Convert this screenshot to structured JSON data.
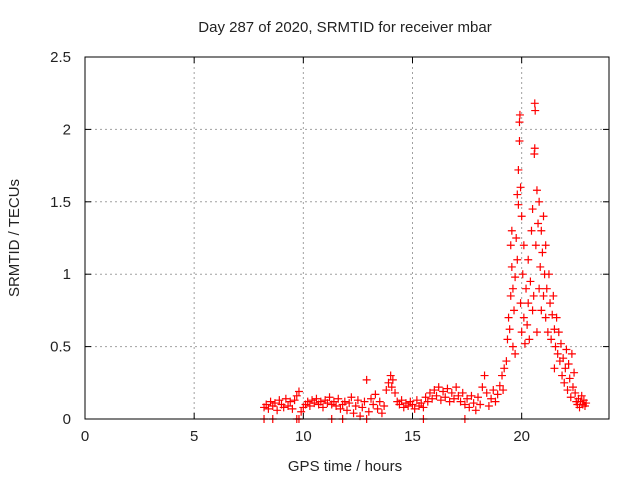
{
  "chart_data": {
    "type": "scatter",
    "title": "Day 287 of 2020, SRMTID for receiver mbar",
    "xlabel": "GPS time / hours",
    "ylabel": "SRMTID / TECUs",
    "xlim": [
      0,
      24
    ],
    "ylim": [
      0,
      2.5
    ],
    "xticks": [
      0,
      5,
      10,
      15,
      20
    ],
    "xtick_labels": [
      "0",
      "5",
      "10",
      "15",
      "20"
    ],
    "yticks": [
      0,
      0.5,
      1,
      1.5,
      2,
      2.5
    ],
    "ytick_labels": [
      "0",
      "0.5",
      "1",
      "1.5",
      "2",
      "2.5"
    ],
    "grid": true,
    "marker": "plus",
    "color": "#ff0000",
    "series": [
      {
        "name": "SRMTID",
        "points": [
          [
            8.2,
            0
          ],
          [
            8.6,
            0
          ],
          [
            9.7,
            0
          ],
          [
            9.8,
            0
          ],
          [
            11.3,
            0
          ],
          [
            11.8,
            0
          ],
          [
            12.9,
            0
          ],
          [
            15.5,
            0
          ],
          [
            17.4,
            0
          ],
          [
            8.2,
            0.08
          ],
          [
            8.3,
            0.1
          ],
          [
            8.4,
            0.07
          ],
          [
            8.5,
            0.12
          ],
          [
            8.6,
            0.09
          ],
          [
            8.7,
            0.11
          ],
          [
            8.8,
            0.06
          ],
          [
            8.9,
            0.13
          ],
          [
            9.0,
            0.1
          ],
          [
            9.1,
            0.08
          ],
          [
            9.2,
            0.14
          ],
          [
            9.3,
            0.09
          ],
          [
            9.4,
            0.12
          ],
          [
            9.5,
            0.07
          ],
          [
            9.6,
            0.13
          ],
          [
            9.7,
            0.16
          ],
          [
            9.8,
            0.19
          ],
          [
            9.9,
            0.05
          ],
          [
            10.0,
            0.08
          ],
          [
            10.1,
            0.1
          ],
          [
            10.2,
            0.12
          ],
          [
            10.3,
            0.09
          ],
          [
            10.4,
            0.13
          ],
          [
            10.5,
            0.11
          ],
          [
            10.6,
            0.14
          ],
          [
            10.7,
            0.1
          ],
          [
            10.8,
            0.12
          ],
          [
            10.9,
            0.08
          ],
          [
            11.0,
            0.13
          ],
          [
            11.1,
            0.11
          ],
          [
            11.2,
            0.15
          ],
          [
            11.3,
            0.1
          ],
          [
            11.4,
            0.12
          ],
          [
            11.5,
            0.09
          ],
          [
            11.6,
            0.14
          ],
          [
            11.7,
            0.07
          ],
          [
            11.8,
            0.1
          ],
          [
            11.9,
            0.12
          ],
          [
            12.0,
            0.06
          ],
          [
            12.1,
            0.11
          ],
          [
            12.2,
            0.15
          ],
          [
            12.3,
            0.04
          ],
          [
            12.4,
            0.09
          ],
          [
            12.5,
            0.13
          ],
          [
            12.6,
            0.02
          ],
          [
            12.7,
            0.08
          ],
          [
            12.8,
            0.12
          ],
          [
            12.9,
            0.27
          ],
          [
            13.0,
            0.05
          ],
          [
            13.1,
            0.14
          ],
          [
            13.2,
            0.1
          ],
          [
            13.3,
            0.17
          ],
          [
            13.4,
            0.07
          ],
          [
            13.5,
            0.12
          ],
          [
            13.6,
            0.04
          ],
          [
            13.7,
            0.09
          ],
          [
            13.8,
            0.2
          ],
          [
            13.9,
            0.25
          ],
          [
            14.0,
            0.3
          ],
          [
            14.05,
            0.22
          ],
          [
            14.1,
            0.27
          ],
          [
            14.2,
            0.18
          ],
          [
            14.3,
            0.12
          ],
          [
            14.4,
            0.1
          ],
          [
            14.5,
            0.13
          ],
          [
            14.6,
            0.08
          ],
          [
            14.7,
            0.11
          ],
          [
            14.8,
            0.09
          ],
          [
            14.9,
            0.12
          ],
          [
            15.0,
            0.1
          ],
          [
            15.1,
            0.07
          ],
          [
            15.2,
            0.13
          ],
          [
            15.3,
            0.09
          ],
          [
            15.4,
            0.11
          ],
          [
            15.5,
            0.08
          ],
          [
            15.6,
            0.15
          ],
          [
            15.7,
            0.12
          ],
          [
            15.8,
            0.18
          ],
          [
            15.9,
            0.14
          ],
          [
            16.0,
            0.2
          ],
          [
            16.1,
            0.16
          ],
          [
            16.2,
            0.22
          ],
          [
            16.3,
            0.13
          ],
          [
            16.4,
            0.19
          ],
          [
            16.5,
            0.15
          ],
          [
            16.6,
            0.21
          ],
          [
            16.7,
            0.12
          ],
          [
            16.8,
            0.18
          ],
          [
            16.9,
            0.14
          ],
          [
            17.0,
            0.22
          ],
          [
            17.1,
            0.16
          ],
          [
            17.2,
            0.12
          ],
          [
            17.3,
            0.18
          ],
          [
            17.4,
            0.1
          ],
          [
            17.5,
            0.14
          ],
          [
            17.6,
            0.08
          ],
          [
            17.7,
            0.16
          ],
          [
            17.8,
            0.11
          ],
          [
            17.9,
            0.06
          ],
          [
            18.0,
            0.15
          ],
          [
            18.1,
            0.1
          ],
          [
            18.2,
            0.22
          ],
          [
            18.3,
            0.3
          ],
          [
            18.4,
            0.18
          ],
          [
            18.5,
            0.09
          ],
          [
            18.6,
            0.14
          ],
          [
            18.7,
            0.2
          ],
          [
            18.8,
            0.12
          ],
          [
            18.9,
            0.17
          ],
          [
            19.0,
            0.23
          ],
          [
            19.1,
            0.3
          ],
          [
            19.15,
            0.2
          ],
          [
            19.2,
            0.35
          ],
          [
            19.3,
            0.4
          ],
          [
            19.35,
            0.55
          ],
          [
            19.4,
            0.7
          ],
          [
            19.45,
            0.62
          ],
          [
            19.5,
            0.85
          ],
          [
            19.5,
            1.2
          ],
          [
            19.55,
            1.3
          ],
          [
            19.55,
            1.05
          ],
          [
            19.6,
            0.9
          ],
          [
            19.6,
            0.5
          ],
          [
            19.65,
            0.75
          ],
          [
            19.7,
            0.98
          ],
          [
            19.7,
            0.45
          ],
          [
            19.75,
            1.25
          ],
          [
            19.8,
            1.1
          ],
          [
            19.8,
            1.55
          ],
          [
            19.85,
            1.72
          ],
          [
            19.85,
            1.48
          ],
          [
            19.9,
            1.92
          ],
          [
            19.9,
            2.05
          ],
          [
            19.92,
            2.1
          ],
          [
            19.95,
            1.6
          ],
          [
            19.95,
            0.8
          ],
          [
            20.0,
            1.4
          ],
          [
            20.0,
            0.6
          ],
          [
            20.05,
            1.0
          ],
          [
            20.1,
            0.7
          ],
          [
            20.1,
            1.2
          ],
          [
            20.15,
            0.52
          ],
          [
            20.2,
            0.9
          ],
          [
            20.25,
            0.65
          ],
          [
            20.3,
            1.1
          ],
          [
            20.3,
            0.8
          ],
          [
            20.35,
            0.55
          ],
          [
            20.4,
            0.95
          ],
          [
            20.45,
            1.3
          ],
          [
            20.5,
            0.75
          ],
          [
            20.5,
            1.45
          ],
          [
            20.55,
            0.85
          ],
          [
            20.6,
            2.18
          ],
          [
            20.62,
            2.13
          ],
          [
            20.6,
            1.87
          ],
          [
            20.58,
            1.83
          ],
          [
            20.65,
            1.2
          ],
          [
            20.7,
            1.58
          ],
          [
            20.7,
            0.6
          ],
          [
            20.75,
            1.35
          ],
          [
            20.8,
            0.9
          ],
          [
            20.8,
            1.5
          ],
          [
            20.85,
            1.05
          ],
          [
            20.9,
            1.3
          ],
          [
            20.9,
            0.75
          ],
          [
            20.95,
            1.15
          ],
          [
            21.0,
            1.4
          ],
          [
            21.0,
            0.85
          ],
          [
            21.05,
            1.0
          ],
          [
            21.1,
            0.7
          ],
          [
            21.1,
            1.2
          ],
          [
            21.15,
            0.9
          ],
          [
            21.2,
            0.6
          ],
          [
            21.25,
            1.0
          ],
          [
            21.3,
            0.8
          ],
          [
            21.35,
            0.55
          ],
          [
            21.4,
            0.72
          ],
          [
            21.45,
            0.85
          ],
          [
            21.5,
            0.62
          ],
          [
            21.5,
            0.35
          ],
          [
            21.55,
            0.5
          ],
          [
            21.6,
            0.7
          ],
          [
            21.65,
            0.45
          ],
          [
            21.7,
            0.6
          ],
          [
            21.75,
            0.4
          ],
          [
            21.8,
            0.52
          ],
          [
            21.85,
            0.3
          ],
          [
            21.9,
            0.42
          ],
          [
            21.95,
            0.25
          ],
          [
            22.0,
            0.35
          ],
          [
            22.05,
            0.48
          ],
          [
            22.1,
            0.2
          ],
          [
            22.15,
            0.38
          ],
          [
            22.2,
            0.28
          ],
          [
            22.25,
            0.15
          ],
          [
            22.3,
            0.45
          ],
          [
            22.35,
            0.22
          ],
          [
            22.4,
            0.32
          ],
          [
            22.45,
            0.18
          ],
          [
            22.5,
            0.12
          ],
          [
            22.55,
            0.1
          ],
          [
            22.6,
            0.14
          ],
          [
            22.65,
            0.08
          ],
          [
            22.7,
            0.12
          ],
          [
            22.75,
            0.16
          ],
          [
            22.8,
            0.1
          ],
          [
            22.85,
            0.13
          ],
          [
            22.9,
            0.09
          ],
          [
            22.95,
            0.11
          ]
        ]
      }
    ]
  }
}
